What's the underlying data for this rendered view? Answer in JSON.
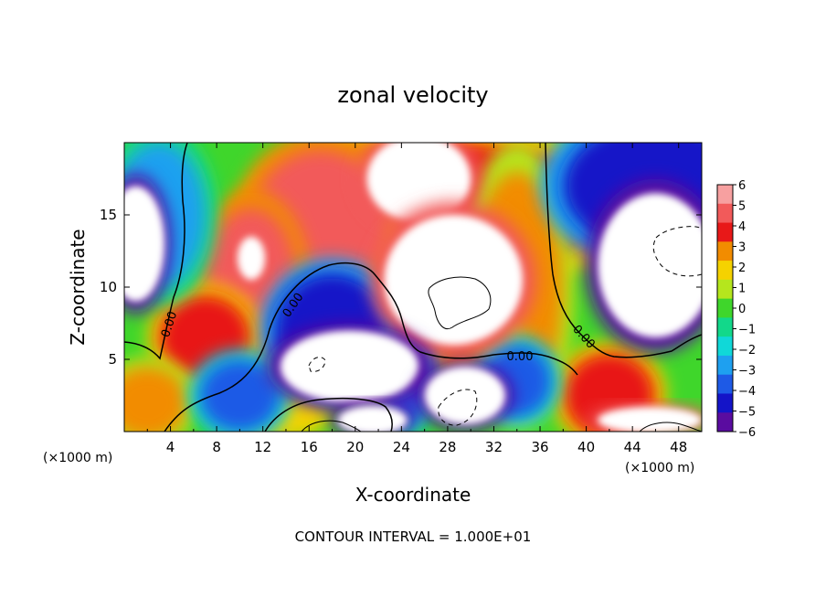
{
  "chart_data": {
    "type": "heatmap",
    "title": "zonal velocity",
    "xlabel": "X-coordinate",
    "ylabel": "Z-coordinate",
    "x_unit_left": "(×1000 m)",
    "x_unit_right": "(×1000 m)",
    "footer": "CONTOUR INTERVAL = 1.000E+01",
    "xlim": [
      0,
      50
    ],
    "ylim": [
      0,
      20
    ],
    "xticks": [
      4,
      8,
      12,
      16,
      20,
      24,
      28,
      32,
      36,
      40,
      44,
      48
    ],
    "yticks": [
      5,
      10,
      15
    ],
    "colorbar": {
      "min": -6,
      "max": 6,
      "ticks": [
        6,
        5,
        4,
        3,
        2,
        1,
        0,
        -1,
        -2,
        -3,
        -4,
        -5,
        -6
      ],
      "tick_labels": [
        "6",
        "5",
        "4",
        "3",
        "2",
        "1",
        "0",
        "−1",
        "−2",
        "−3",
        "−4",
        "−5",
        "−6"
      ],
      "colors_high_to_low": [
        "#f7a0a0",
        "#f25a5a",
        "#e81818",
        "#f28c00",
        "#f5d200",
        "#b5e61d",
        "#3fd62b",
        "#12d88a",
        "#10d8d8",
        "#1ea0f0",
        "#1e5ae6",
        "#1414c8",
        "#5a0ca0"
      ]
    },
    "contour_labels": [
      "0.00",
      "0.00",
      "0.00",
      "0.00"
    ],
    "regions": [
      {
        "kind": "warm",
        "value": 4.2,
        "x": 28.0,
        "z": 15.5,
        "rx": 14.0,
        "rz": 4.5
      },
      {
        "kind": "warm",
        "value": 4.8,
        "x": 17.0,
        "z": 14.5,
        "rx": 6.0,
        "rz": 5.0
      },
      {
        "kind": "warm",
        "value": 5.0,
        "x": 11.0,
        "z": 10.5,
        "rx": 4.0,
        "rz": 5.0
      },
      {
        "kind": "warm",
        "value": 3.5,
        "x": 34.0,
        "z": 10.0,
        "rx": 4.0,
        "rz": 8.0
      },
      {
        "kind": "warm",
        "value": 4.5,
        "x": 7.0,
        "z": 6.5,
        "rx": 4.0,
        "rz": 3.0
      },
      {
        "kind": "warm",
        "value": 3.0,
        "x": 2.0,
        "z": 2.0,
        "rx": 3.5,
        "rz": 2.5
      },
      {
        "kind": "warm",
        "value": 3.2,
        "x": 28.0,
        "z": 6.5,
        "rx": 5.0,
        "rz": 2.0
      },
      {
        "kind": "warm",
        "value": 4.5,
        "x": 42.0,
        "z": 2.5,
        "rx": 4.0,
        "rz": 3.0
      },
      {
        "kind": "warm",
        "value": 2.0,
        "x": 13.0,
        "z": 1.2,
        "rx": 5.0,
        "rz": 1.8
      },
      {
        "kind": "cool",
        "value": -4.8,
        "x": 46.0,
        "z": 17.0,
        "rx": 8.0,
        "rz": 4.5
      },
      {
        "kind": "cool",
        "value": -3.0,
        "x": 3.0,
        "z": 15.0,
        "rx": 4.0,
        "rz": 5.0
      },
      {
        "kind": "cool",
        "value": -4.5,
        "x": 18.0,
        "z": 7.0,
        "rx": 5.0,
        "rz": 4.0
      },
      {
        "kind": "cool",
        "value": -3.5,
        "x": 24.5,
        "z": 4.0,
        "rx": 2.0,
        "rz": 3.5
      },
      {
        "kind": "cool",
        "value": -4.2,
        "x": 34.0,
        "z": 3.5,
        "rx": 3.0,
        "rz": 2.5
      },
      {
        "kind": "cool",
        "value": -4.0,
        "x": 10.0,
        "z": 2.5,
        "rx": 3.5,
        "rz": 2.5
      },
      {
        "kind": "white",
        "value": 7,
        "x": 25.5,
        "z": 17.5,
        "rx": 4.5,
        "rz": 3.0
      },
      {
        "kind": "white",
        "value": 7,
        "x": 28.5,
        "z": 10.5,
        "rx": 6.0,
        "rz": 4.5
      },
      {
        "kind": "white",
        "value": 7,
        "x": 11.0,
        "z": 12.0,
        "rx": 1.2,
        "rz": 1.5
      },
      {
        "kind": "white",
        "value": -7,
        "x": 46.0,
        "z": 11.5,
        "rx": 5.0,
        "rz": 5.0
      },
      {
        "kind": "white",
        "value": -7,
        "x": 1.0,
        "z": 13.0,
        "rx": 2.5,
        "rz": 4.0
      },
      {
        "kind": "white",
        "value": -7,
        "x": 19.5,
        "z": 4.5,
        "rx": 6.0,
        "rz": 2.5
      },
      {
        "kind": "white",
        "value": -7,
        "x": 29.5,
        "z": 2.5,
        "rx": 3.5,
        "rz": 2.0
      },
      {
        "kind": "white",
        "value": -7,
        "x": 21.5,
        "z": 0.8,
        "rx": 3.0,
        "rz": 1.0
      },
      {
        "kind": "white",
        "value": 7,
        "x": 45.5,
        "z": 0.8,
        "rx": 4.5,
        "rz": 0.9
      }
    ]
  }
}
